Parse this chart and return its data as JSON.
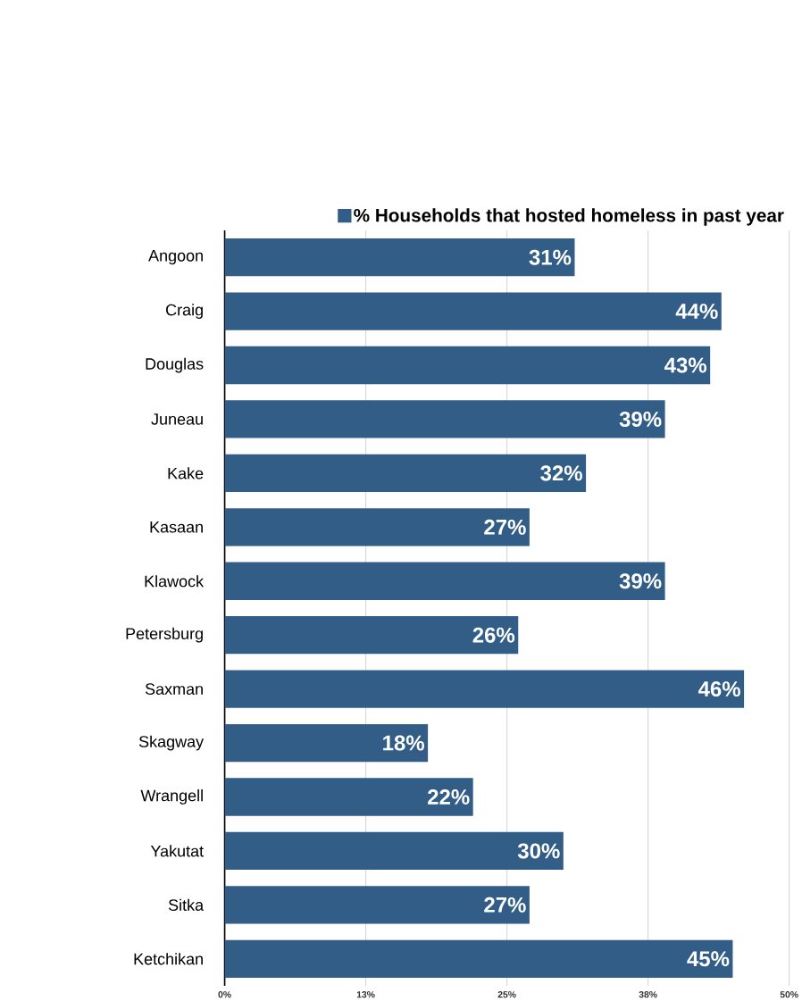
{
  "chart_data": {
    "type": "bar",
    "orientation": "horizontal",
    "categories": [
      "Angoon",
      "Craig",
      "Douglas",
      "Juneau",
      "Kake",
      "Kasaan",
      "Klawock",
      "Petersburg",
      "Saxman",
      "Skagway",
      "Wrangell",
      "Yakutat",
      "Sitka",
      "Ketchikan"
    ],
    "series": [
      {
        "name": "% Households that hosted homeless in past year",
        "color": "#325d87",
        "values": [
          31,
          44,
          43,
          39,
          32,
          27,
          39,
          26,
          46,
          18,
          22,
          30,
          27,
          45
        ],
        "value_labels": [
          "31%",
          "44%",
          "43%",
          "39%",
          "32%",
          "27%",
          "39%",
          "26%",
          "46%",
          "18%",
          "22%",
          "30%",
          "27%",
          "45%"
        ]
      }
    ],
    "xlim": [
      0,
      50
    ],
    "xticks": [
      {
        "value": 0,
        "label": "0%"
      },
      {
        "value": 12.5,
        "label": "13%"
      },
      {
        "value": 25,
        "label": "25%"
      },
      {
        "value": 37.5,
        "label": "38%"
      },
      {
        "value": 50,
        "label": "50%"
      }
    ],
    "grid": "x",
    "legend": "top"
  }
}
